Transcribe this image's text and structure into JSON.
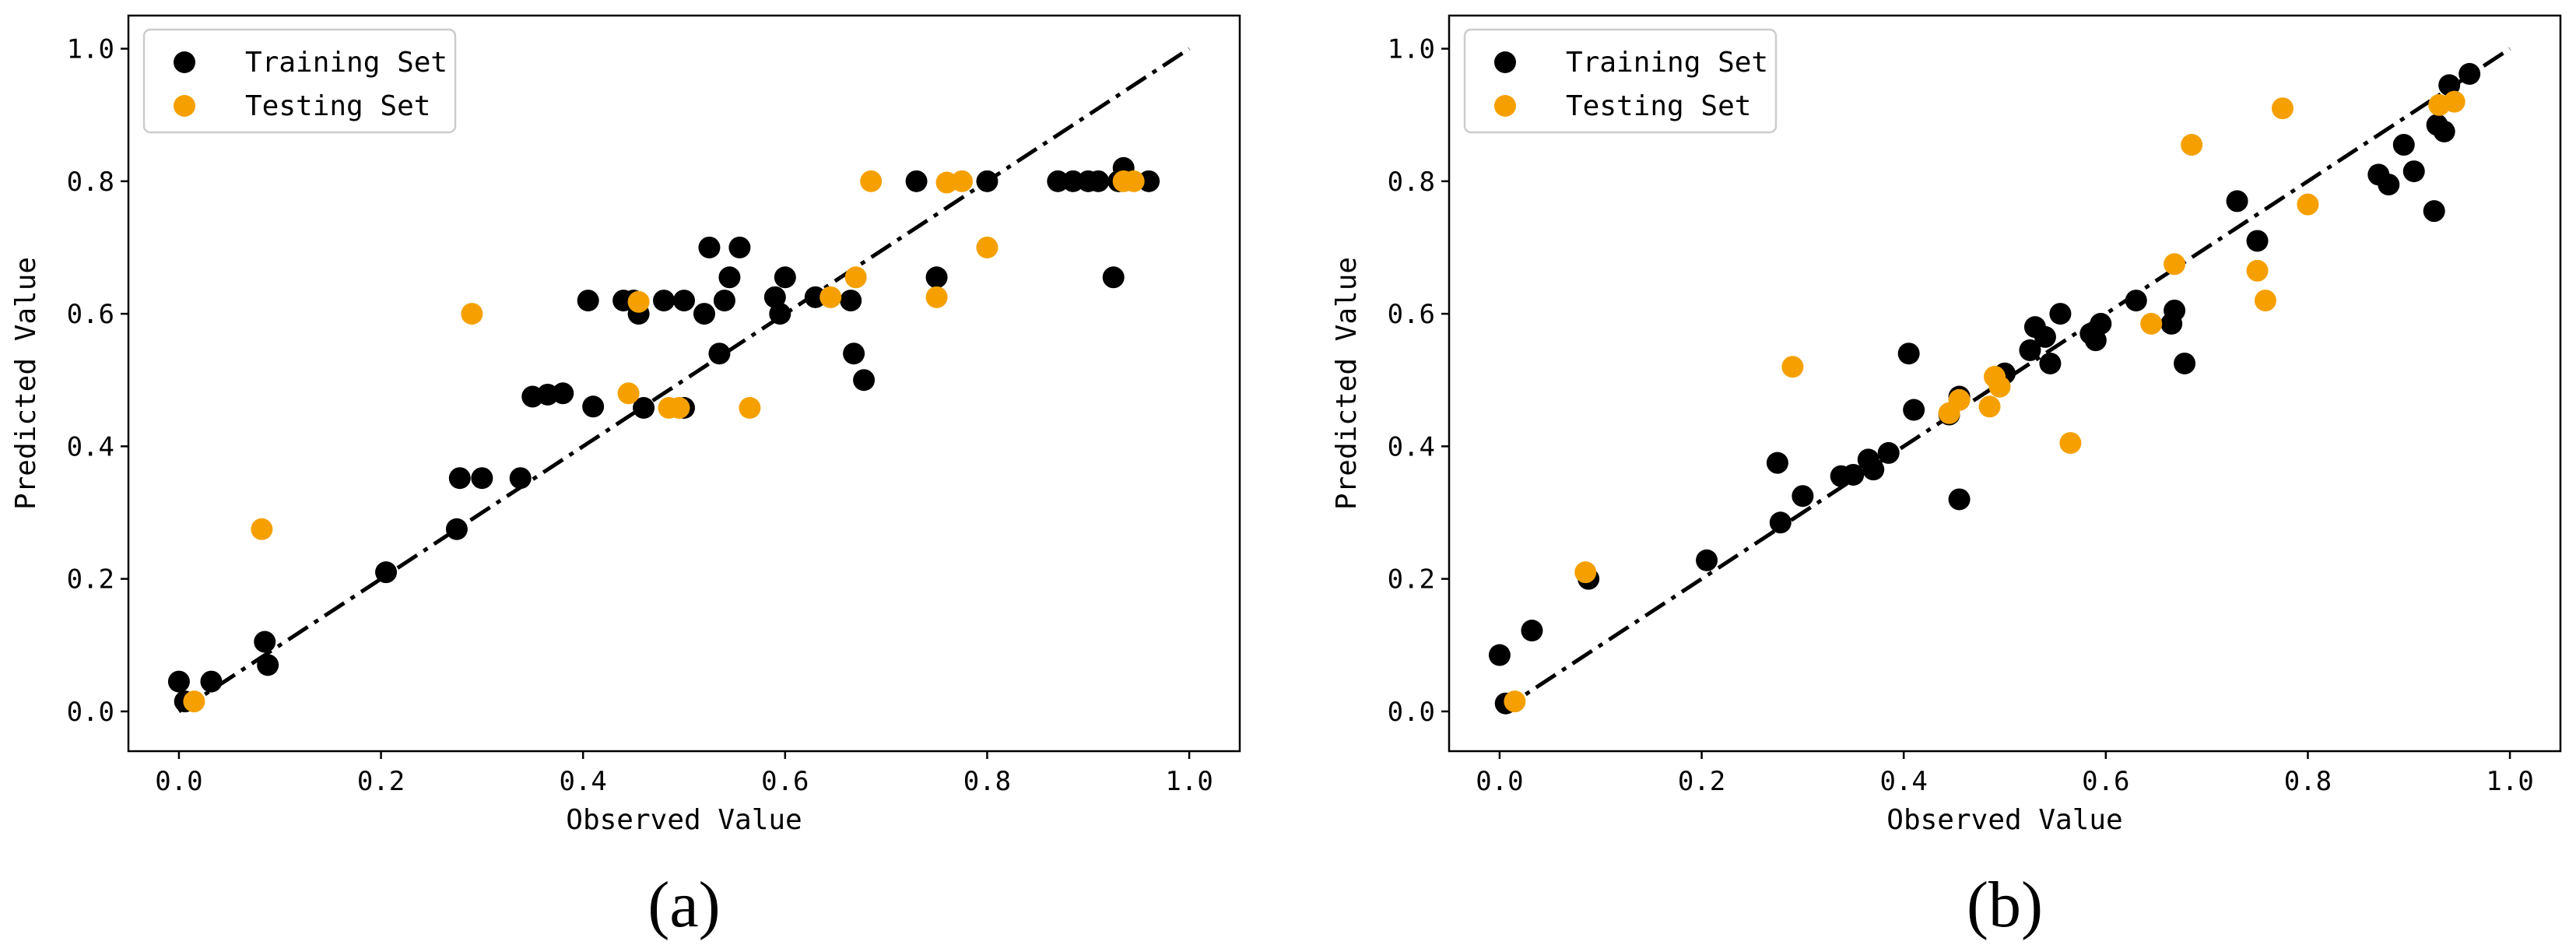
{
  "chart_data": [
    {
      "type": "scatter",
      "panel_label": "(a)",
      "xlabel": "Observed Value",
      "ylabel": "Predicted Value",
      "xlim": [
        -0.05,
        1.05
      ],
      "ylim": [
        -0.06,
        1.05
      ],
      "xticks": [
        "0.0",
        "0.2",
        "0.4",
        "0.6",
        "0.8",
        "1.0"
      ],
      "yticks": [
        "0.0",
        "0.2",
        "0.4",
        "0.6",
        "0.8",
        "1.0"
      ],
      "legend_position": "top-left",
      "reference_line": {
        "style": "dash-dot",
        "from": [
          0,
          0
        ],
        "to": [
          1,
          1
        ],
        "color": "#000000"
      },
      "series": [
        {
          "name": "Training Set",
          "color": "#000000",
          "points": [
            [
              0.0,
              0.045
            ],
            [
              0.006,
              0.015
            ],
            [
              0.032,
              0.045
            ],
            [
              0.085,
              0.105
            ],
            [
              0.088,
              0.07
            ],
            [
              0.205,
              0.21
            ],
            [
              0.275,
              0.275
            ],
            [
              0.278,
              0.352
            ],
            [
              0.3,
              0.352
            ],
            [
              0.338,
              0.352
            ],
            [
              0.35,
              0.475
            ],
            [
              0.365,
              0.478
            ],
            [
              0.38,
              0.48
            ],
            [
              0.405,
              0.62
            ],
            [
              0.41,
              0.46
            ],
            [
              0.44,
              0.62
            ],
            [
              0.45,
              0.62
            ],
            [
              0.455,
              0.6
            ],
            [
              0.46,
              0.458
            ],
            [
              0.48,
              0.62
            ],
            [
              0.5,
              0.62
            ],
            [
              0.5,
              0.458
            ],
            [
              0.52,
              0.6
            ],
            [
              0.525,
              0.7
            ],
            [
              0.535,
              0.54
            ],
            [
              0.54,
              0.62
            ],
            [
              0.545,
              0.655
            ],
            [
              0.555,
              0.7
            ],
            [
              0.59,
              0.625
            ],
            [
              0.595,
              0.6
            ],
            [
              0.6,
              0.655
            ],
            [
              0.63,
              0.625
            ],
            [
              0.665,
              0.62
            ],
            [
              0.668,
              0.54
            ],
            [
              0.678,
              0.5
            ],
            [
              0.73,
              0.8
            ],
            [
              0.75,
              0.655
            ],
            [
              0.8,
              0.8
            ],
            [
              0.87,
              0.8
            ],
            [
              0.885,
              0.8
            ],
            [
              0.9,
              0.8
            ],
            [
              0.91,
              0.8
            ],
            [
              0.925,
              0.655
            ],
            [
              0.93,
              0.8
            ],
            [
              0.935,
              0.82
            ],
            [
              0.96,
              0.8
            ]
          ]
        },
        {
          "name": "Testing Set",
          "color": "#f5a000",
          "points": [
            [
              0.015,
              0.015
            ],
            [
              0.082,
              0.275
            ],
            [
              0.29,
              0.6
            ],
            [
              0.445,
              0.48
            ],
            [
              0.455,
              0.618
            ],
            [
              0.485,
              0.458
            ],
            [
              0.495,
              0.458
            ],
            [
              0.565,
              0.458
            ],
            [
              0.645,
              0.625
            ],
            [
              0.67,
              0.655
            ],
            [
              0.685,
              0.8
            ],
            [
              0.75,
              0.625
            ],
            [
              0.76,
              0.798
            ],
            [
              0.775,
              0.8
            ],
            [
              0.8,
              0.7
            ],
            [
              0.935,
              0.8
            ],
            [
              0.945,
              0.8
            ]
          ]
        }
      ]
    },
    {
      "type": "scatter",
      "panel_label": "(b)",
      "xlabel": "Observed Value",
      "ylabel": "Predicted Value",
      "xlim": [
        -0.05,
        1.05
      ],
      "ylim": [
        -0.06,
        1.05
      ],
      "xticks": [
        "0.0",
        "0.2",
        "0.4",
        "0.6",
        "0.8",
        "1.0"
      ],
      "yticks": [
        "0.0",
        "0.2",
        "0.4",
        "0.6",
        "0.8",
        "1.0"
      ],
      "legend_position": "top-left",
      "reference_line": {
        "style": "dash-dot",
        "from": [
          0,
          0
        ],
        "to": [
          1,
          1
        ],
        "color": "#000000"
      },
      "series": [
        {
          "name": "Training Set",
          "color": "#000000",
          "points": [
            [
              0.0,
              0.085
            ],
            [
              0.006,
              0.012
            ],
            [
              0.032,
              0.122
            ],
            [
              0.088,
              0.2
            ],
            [
              0.205,
              0.228
            ],
            [
              0.275,
              0.375
            ],
            [
              0.278,
              0.285
            ],
            [
              0.3,
              0.325
            ],
            [
              0.338,
              0.355
            ],
            [
              0.35,
              0.357
            ],
            [
              0.365,
              0.38
            ],
            [
              0.37,
              0.365
            ],
            [
              0.385,
              0.39
            ],
            [
              0.405,
              0.54
            ],
            [
              0.41,
              0.455
            ],
            [
              0.445,
              0.448
            ],
            [
              0.455,
              0.32
            ],
            [
              0.455,
              0.475
            ],
            [
              0.5,
              0.51
            ],
            [
              0.525,
              0.545
            ],
            [
              0.53,
              0.58
            ],
            [
              0.54,
              0.565
            ],
            [
              0.545,
              0.525
            ],
            [
              0.555,
              0.6
            ],
            [
              0.585,
              0.57
            ],
            [
              0.59,
              0.56
            ],
            [
              0.595,
              0.585
            ],
            [
              0.63,
              0.62
            ],
            [
              0.665,
              0.585
            ],
            [
              0.668,
              0.605
            ],
            [
              0.678,
              0.525
            ],
            [
              0.73,
              0.77
            ],
            [
              0.75,
              0.71
            ],
            [
              0.87,
              0.81
            ],
            [
              0.88,
              0.795
            ],
            [
              0.895,
              0.855
            ],
            [
              0.905,
              0.815
            ],
            [
              0.925,
              0.755
            ],
            [
              0.928,
              0.885
            ],
            [
              0.935,
              0.875
            ],
            [
              0.94,
              0.945
            ],
            [
              0.96,
              0.962
            ]
          ]
        },
        {
          "name": "Testing Set",
          "color": "#f5a000",
          "points": [
            [
              0.015,
              0.015
            ],
            [
              0.085,
              0.21
            ],
            [
              0.29,
              0.52
            ],
            [
              0.445,
              0.45
            ],
            [
              0.455,
              0.47
            ],
            [
              0.485,
              0.46
            ],
            [
              0.49,
              0.505
            ],
            [
              0.495,
              0.49
            ],
            [
              0.565,
              0.405
            ],
            [
              0.645,
              0.585
            ],
            [
              0.668,
              0.675
            ],
            [
              0.685,
              0.855
            ],
            [
              0.75,
              0.665
            ],
            [
              0.758,
              0.62
            ],
            [
              0.775,
              0.91
            ],
            [
              0.8,
              0.765
            ],
            [
              0.93,
              0.915
            ],
            [
              0.945,
              0.92
            ]
          ]
        }
      ]
    }
  ]
}
